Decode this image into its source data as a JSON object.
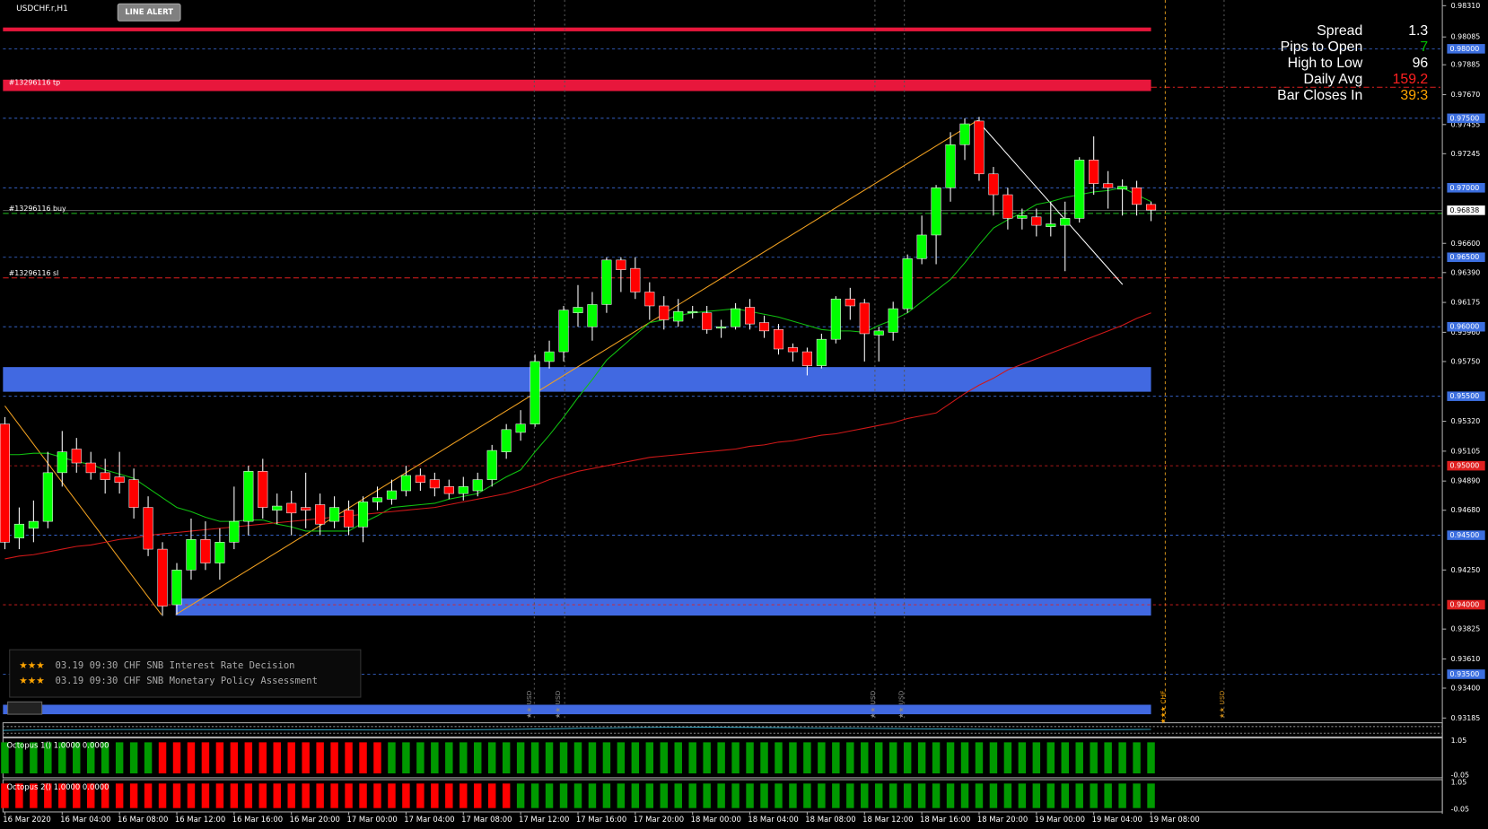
{
  "header": {
    "symbol": "USDCHF.r,H1",
    "button": "LINE ALERT"
  },
  "info": [
    {
      "label": "Spread",
      "value": 1.3,
      "color": "#ffffff"
    },
    {
      "label": "Pips to Open",
      "value": 7,
      "color": "#00c000"
    },
    {
      "label": "High to Low",
      "value": 96,
      "color": "#ffffff"
    },
    {
      "label": "Daily Avg",
      "value": 159.2,
      "color": "#ff2020"
    },
    {
      "label": "Bar Closes In",
      "value": "39:3",
      "color": "#ffa500"
    }
  ],
  "orders": [
    "#13296116 tp",
    "#13296116 buy",
    "#13296116 sl"
  ],
  "news": [
    {
      "stars": "★★★",
      "text": "03.19 09:30 CHF SNB Interest Rate Decision"
    },
    {
      "stars": "★★★",
      "text": "03.19 09:30 CHF SNB Monetary Policy Assessment"
    }
  ],
  "events": [
    "★★ USD",
    "★★ USD",
    "★★ USD",
    "★★ USD",
    "★★★ CHF",
    "★★ USD"
  ],
  "chart_data": {
    "type": "candlestick",
    "up_color": "#00ff00",
    "down_color": "#ff0000",
    "ylim": [
      0.93185,
      0.9831
    ],
    "yticks": [
      {
        "value": 0.9831,
        "label": "0.98310"
      },
      {
        "value": 0.98085,
        "label": "0.98085"
      },
      {
        "value": 0.97885,
        "label": "0.97885"
      },
      {
        "value": 0.9767,
        "label": "0.97670"
      },
      {
        "value": 0.97455,
        "label": "0.97455"
      },
      {
        "value": 0.97245,
        "label": "0.97245"
      },
      {
        "value": 0.966,
        "label": "0.96600"
      },
      {
        "value": 0.9639,
        "label": "0.96390"
      },
      {
        "value": 0.96175,
        "label": "0.96175"
      },
      {
        "value": 0.9596,
        "label": "0.95960"
      },
      {
        "value": 0.9575,
        "label": "0.95750"
      },
      {
        "value": 0.9532,
        "label": "0.95320"
      },
      {
        "value": 0.95105,
        "label": "0.95105"
      },
      {
        "value": 0.9489,
        "label": "0.94890"
      },
      {
        "value": 0.9468,
        "label": "0.94680"
      },
      {
        "value": 0.9425,
        "label": "0.94250"
      },
      {
        "value": 0.93825,
        "label": "0.93825"
      },
      {
        "value": 0.9361,
        "label": "0.93610"
      },
      {
        "value": 0.934,
        "label": "0.93400"
      },
      {
        "value": 0.93185,
        "label": "0.93185"
      }
    ],
    "levels": [
      {
        "value": 0.98,
        "label": "0.98000",
        "color": "#3c6fe0"
      },
      {
        "value": 0.975,
        "label": "0.97500",
        "color": "#3c6fe0"
      },
      {
        "value": 0.97,
        "label": "0.97000",
        "color": "#3c6fe0"
      },
      {
        "value": 0.965,
        "label": "0.96500",
        "color": "#3c6fe0"
      },
      {
        "value": 0.96,
        "label": "0.96000",
        "color": "#3c6fe0"
      },
      {
        "value": 0.955,
        "label": "0.95500",
        "color": "#3c6fe0"
      },
      {
        "value": 0.95,
        "label": "0.95000",
        "color": "#e02020"
      },
      {
        "value": 0.945,
        "label": "0.94500",
        "color": "#3c6fe0"
      },
      {
        "value": 0.94,
        "label": "0.94000",
        "color": "#e02020"
      },
      {
        "value": 0.935,
        "label": "0.93500",
        "color": "#3c6fe0"
      }
    ],
    "current_price": {
      "value": 0.96838,
      "label": "0.96838"
    },
    "xticks": [
      "16 Mar 2020",
      "16 Mar 04:00",
      "16 Mar 08:00",
      "16 Mar 12:00",
      "16 Mar 16:00",
      "16 Mar 20:00",
      "17 Mar 00:00",
      "17 Mar 04:00",
      "17 Mar 08:00",
      "17 Mar 12:00",
      "17 Mar 16:00",
      "17 Mar 20:00",
      "18 Mar 00:00",
      "18 Mar 04:00",
      "18 Mar 08:00",
      "18 Mar 12:00",
      "18 Mar 16:00",
      "18 Mar 20:00",
      "19 Mar 00:00",
      "19 Mar 04:00",
      "19 Mar 08:00"
    ],
    "open": [
      0.953,
      0.9448,
      0.9455,
      0.946,
      0.9495,
      0.9512,
      0.9502,
      0.9495,
      0.9492,
      0.949,
      0.947,
      0.944,
      0.94,
      0.9425,
      0.9447,
      0.943,
      0.9445,
      0.946,
      0.9496,
      0.9468,
      0.9473,
      0.947,
      0.9472,
      0.946,
      0.9468,
      0.9456,
      0.9474,
      0.9476,
      0.9482,
      0.9493,
      0.949,
      0.9485,
      0.948,
      0.9482,
      0.949,
      0.951,
      0.9524,
      0.953,
      0.9575,
      0.9582,
      0.961,
      0.96,
      0.9616,
      0.9648,
      0.9642,
      0.9625,
      0.9615,
      0.9604,
      0.961,
      0.961,
      0.9599,
      0.96,
      0.9614,
      0.9603,
      0.9598,
      0.9585,
      0.9582,
      0.9572,
      0.9591,
      0.962,
      0.9617,
      0.9594,
      0.9596,
      0.9613,
      0.9649,
      0.9666,
      0.97,
      0.9731,
      0.9748,
      0.971,
      0.9695,
      0.9678,
      0.9679,
      0.9672,
      0.9673,
      0.9678,
      0.972,
      0.9703,
      0.9699,
      0.97,
      0.9688
    ],
    "high": [
      0.9535,
      0.947,
      0.9475,
      0.951,
      0.9525,
      0.952,
      0.951,
      0.9505,
      0.951,
      0.9498,
      0.9478,
      0.9445,
      0.943,
      0.9462,
      0.946,
      0.9455,
      0.9485,
      0.95,
      0.9505,
      0.948,
      0.9482,
      0.9495,
      0.948,
      0.9478,
      0.9475,
      0.9478,
      0.9485,
      0.949,
      0.95,
      0.9498,
      0.9495,
      0.949,
      0.9492,
      0.9495,
      0.9515,
      0.953,
      0.954,
      0.958,
      0.959,
      0.9615,
      0.963,
      0.9625,
      0.965,
      0.965,
      0.965,
      0.9632,
      0.9622,
      0.962,
      0.9615,
      0.9615,
      0.9605,
      0.9617,
      0.962,
      0.9608,
      0.9602,
      0.9588,
      0.9585,
      0.9595,
      0.9622,
      0.9628,
      0.962,
      0.96,
      0.9618,
      0.9652,
      0.968,
      0.9702,
      0.974,
      0.975,
      0.9751,
      0.9715,
      0.97,
      0.9685,
      0.9685,
      0.969,
      0.969,
      0.9722,
      0.9737,
      0.9712,
      0.9706,
      0.9705,
      0.969
    ],
    "low": [
      0.944,
      0.944,
      0.9445,
      0.9455,
      0.9485,
      0.9495,
      0.949,
      0.948,
      0.948,
      0.9462,
      0.9435,
      0.9392,
      0.9393,
      0.9418,
      0.9425,
      0.9418,
      0.944,
      0.945,
      0.9462,
      0.9458,
      0.945,
      0.9455,
      0.945,
      0.9455,
      0.945,
      0.9445,
      0.9468,
      0.9472,
      0.9478,
      0.9482,
      0.9478,
      0.9476,
      0.9475,
      0.9478,
      0.9485,
      0.9505,
      0.9518,
      0.9528,
      0.957,
      0.9575,
      0.96,
      0.959,
      0.961,
      0.9625,
      0.962,
      0.9605,
      0.9598,
      0.96,
      0.9606,
      0.9595,
      0.9592,
      0.9598,
      0.9598,
      0.9592,
      0.958,
      0.9575,
      0.9565,
      0.957,
      0.9588,
      0.9605,
      0.9575,
      0.9575,
      0.959,
      0.961,
      0.9645,
      0.9645,
      0.969,
      0.972,
      0.9705,
      0.968,
      0.967,
      0.967,
      0.9665,
      0.9665,
      0.964,
      0.9675,
      0.9695,
      0.9685,
      0.968,
      0.968,
      0.9676
    ],
    "close": [
      0.9445,
      0.9458,
      0.946,
      0.9495,
      0.951,
      0.9502,
      0.9495,
      0.949,
      0.9488,
      0.947,
      0.944,
      0.9399,
      0.9425,
      0.9447,
      0.943,
      0.9445,
      0.946,
      0.9496,
      0.947,
      0.9471,
      0.9466,
      0.9468,
      0.9458,
      0.947,
      0.9456,
      0.9474,
      0.9477,
      0.9482,
      0.9493,
      0.9488,
      0.9484,
      0.948,
      0.9485,
      0.949,
      0.9511,
      0.9526,
      0.953,
      0.9575,
      0.9582,
      0.9612,
      0.9614,
      0.9616,
      0.9648,
      0.9641,
      0.9625,
      0.9615,
      0.9605,
      0.9611,
      0.9611,
      0.9598,
      0.96,
      0.9613,
      0.9602,
      0.9597,
      0.9584,
      0.9582,
      0.9572,
      0.9591,
      0.962,
      0.9615,
      0.9595,
      0.9597,
      0.9613,
      0.9649,
      0.9666,
      0.97,
      0.9731,
      0.9746,
      0.971,
      0.9695,
      0.9678,
      0.968,
      0.9673,
      0.9674,
      0.9678,
      0.972,
      0.9703,
      0.97,
      0.9701,
      0.9688,
      0.9684
    ],
    "series": [
      {
        "color": "#10c010",
        "values": [
          0.9508,
          0.9508,
          0.9509,
          0.9509,
          0.9506,
          0.9503,
          0.9501,
          0.9497,
          0.9494,
          0.9491,
          0.9484,
          0.9477,
          0.947,
          0.9467,
          0.9463,
          0.946,
          0.946,
          0.9461,
          0.9461,
          0.9458,
          0.9456,
          0.9453,
          0.9453,
          0.9453,
          0.9453,
          0.9459,
          0.9464,
          0.947,
          0.9471,
          0.9472,
          0.9473,
          0.9476,
          0.9478,
          0.948,
          0.9486,
          0.9492,
          0.9497,
          0.951,
          0.9522,
          0.9535,
          0.9549,
          0.9562,
          0.9576,
          0.9585,
          0.9594,
          0.9603,
          0.9605,
          0.9608,
          0.961,
          0.9611,
          0.9612,
          0.9613,
          0.9611,
          0.9609,
          0.9607,
          0.9604,
          0.9601,
          0.9598,
          0.9597,
          0.9597,
          0.9596,
          0.9601,
          0.9605,
          0.961,
          0.9618,
          0.9626,
          0.9634,
          0.9646,
          0.9659,
          0.9671,
          0.9677,
          0.9682,
          0.9688,
          0.969,
          0.9693,
          0.9695,
          0.9697,
          0.9698,
          0.97,
          0.9695,
          0.969
        ]
      },
      {
        "color": "#d01818",
        "values": [
          0.9433,
          0.9435,
          0.9436,
          0.9438,
          0.944,
          0.9442,
          0.9443,
          0.9445,
          0.9447,
          0.9448,
          0.945,
          0.9451,
          0.9452,
          0.9453,
          0.9454,
          0.9455,
          0.9456,
          0.9457,
          0.9458,
          0.9459,
          0.946,
          0.9461,
          0.9462,
          0.9463,
          0.9464,
          0.9465,
          0.9466,
          0.9467,
          0.9468,
          0.9469,
          0.947,
          0.9472,
          0.9474,
          0.9476,
          0.9478,
          0.948,
          0.9483,
          0.9486,
          0.949,
          0.9493,
          0.9496,
          0.9498,
          0.95,
          0.9502,
          0.9504,
          0.9506,
          0.9507,
          0.9508,
          0.9509,
          0.951,
          0.9511,
          0.9512,
          0.9514,
          0.9515,
          0.9517,
          0.9518,
          0.952,
          0.9522,
          0.9523,
          0.9525,
          0.9527,
          0.9529,
          0.9531,
          0.9534,
          0.9536,
          0.9538,
          0.9545,
          0.9552,
          0.9558,
          0.9563,
          0.9569,
          0.9573,
          0.9577,
          0.9581,
          0.9585,
          0.9589,
          0.9593,
          0.9597,
          0.9601,
          0.9606,
          0.961
        ]
      }
    ]
  },
  "indicators": [
    {
      "label": "Octopus 1() 1.0000 0.0000",
      "ylim": [
        -0.08,
        1.08
      ],
      "yticks": [
        1.05,
        -0.05
      ],
      "values": [
        1,
        1,
        1,
        1,
        1,
        1,
        1,
        1,
        1,
        1,
        1,
        1,
        1,
        1,
        1,
        1,
        1,
        1,
        1,
        1,
        1,
        1,
        1,
        1,
        1,
        1,
        1,
        1,
        1,
        1,
        1,
        1,
        1,
        1,
        1,
        1,
        1,
        1,
        1,
        1,
        1,
        1,
        1,
        1,
        1,
        1,
        1,
        1,
        1,
        1,
        1,
        1,
        1,
        1,
        1,
        1,
        1,
        1,
        1,
        1,
        1,
        1,
        1,
        1,
        1,
        1,
        1,
        1,
        1,
        1,
        1,
        1,
        1,
        1,
        1,
        1,
        1,
        1,
        1,
        1,
        1
      ],
      "colors": [
        "#009a00",
        "#009a00",
        "#009a00",
        "#009a00",
        "#009a00",
        "#009a00",
        "#009a00",
        "#009a00",
        "#009a00",
        "#009a00",
        "#009a00",
        "#ff0000",
        "#ff0000",
        "#ff0000",
        "#ff0000",
        "#ff0000",
        "#ff0000",
        "#ff0000",
        "#ff0000",
        "#ff0000",
        "#ff0000",
        "#ff0000",
        "#ff0000",
        "#ff0000",
        "#ff0000",
        "#ff0000",
        "#ff0000",
        "#009a00",
        "#009a00",
        "#009a00",
        "#009a00",
        "#009a00",
        "#009a00",
        "#009a00",
        "#009a00",
        "#009a00",
        "#009a00",
        "#009a00",
        "#009a00",
        "#009a00",
        "#009a00",
        "#009a00",
        "#009a00",
        "#009a00",
        "#009a00",
        "#009a00",
        "#009a00",
        "#009a00",
        "#009a00",
        "#009a00",
        "#009a00",
        "#009a00",
        "#009a00",
        "#009a00",
        "#009a00",
        "#009a00",
        "#009a00",
        "#009a00",
        "#009a00",
        "#009a00",
        "#009a00",
        "#009a00",
        "#009a00",
        "#009a00",
        "#009a00",
        "#009a00",
        "#009a00",
        "#009a00",
        "#009a00",
        "#009a00",
        "#009a00",
        "#009a00",
        "#009a00",
        "#009a00",
        "#009a00",
        "#009a00",
        "#009a00",
        "#009a00",
        "#009a00",
        "#009a00",
        "#009a00"
      ]
    },
    {
      "label": "Octopus 2() 1.0000 0.0000",
      "ylim": [
        -0.08,
        1.08
      ],
      "yticks": [
        1.05,
        -0.05
      ],
      "values": [
        1,
        1,
        1,
        1,
        1,
        1,
        1,
        1,
        1,
        1,
        1,
        1,
        1,
        1,
        1,
        1,
        1,
        1,
        1,
        1,
        1,
        1,
        1,
        1,
        1,
        1,
        1,
        1,
        1,
        1,
        1,
        1,
        1,
        1,
        1,
        1,
        1,
        1,
        1,
        1,
        1,
        1,
        1,
        1,
        1,
        1,
        1,
        1,
        1,
        1,
        1,
        1,
        1,
        1,
        1,
        1,
        1,
        1,
        1,
        1,
        1,
        1,
        1,
        1,
        1,
        1,
        1,
        1,
        1,
        1,
        1,
        1,
        1,
        1,
        1,
        1,
        1,
        1,
        1,
        1,
        1
      ],
      "colors": [
        "#ff0000",
        "#ff0000",
        "#ff0000",
        "#ff0000",
        "#ff0000",
        "#ff0000",
        "#ff0000",
        "#ff0000",
        "#ff0000",
        "#ff0000",
        "#ff0000",
        "#ff0000",
        "#ff0000",
        "#ff0000",
        "#ff0000",
        "#ff0000",
        "#ff0000",
        "#ff0000",
        "#ff0000",
        "#ff0000",
        "#ff0000",
        "#ff0000",
        "#ff0000",
        "#ff0000",
        "#ff0000",
        "#ff0000",
        "#ff0000",
        "#ff0000",
        "#ff0000",
        "#ff0000",
        "#ff0000",
        "#ff0000",
        "#ff0000",
        "#ff0000",
        "#ff0000",
        "#ff0000",
        "#009a00",
        "#009a00",
        "#009a00",
        "#009a00",
        "#009a00",
        "#009a00",
        "#009a00",
        "#009a00",
        "#009a00",
        "#009a00",
        "#009a00",
        "#009a00",
        "#009a00",
        "#009a00",
        "#009a00",
        "#009a00",
        "#009a00",
        "#009a00",
        "#009a00",
        "#009a00",
        "#009a00",
        "#009a00",
        "#009a00",
        "#009a00",
        "#009a00",
        "#009a00",
        "#009a00",
        "#009a00",
        "#009a00",
        "#009a00",
        "#009a00",
        "#009a00",
        "#009a00",
        "#009a00",
        "#009a00",
        "#009a00",
        "#009a00",
        "#009a00",
        "#009a00",
        "#009a00",
        "#009a00",
        "#009a00",
        "#009a00",
        "#009a00",
        "#009a00"
      ]
    }
  ]
}
